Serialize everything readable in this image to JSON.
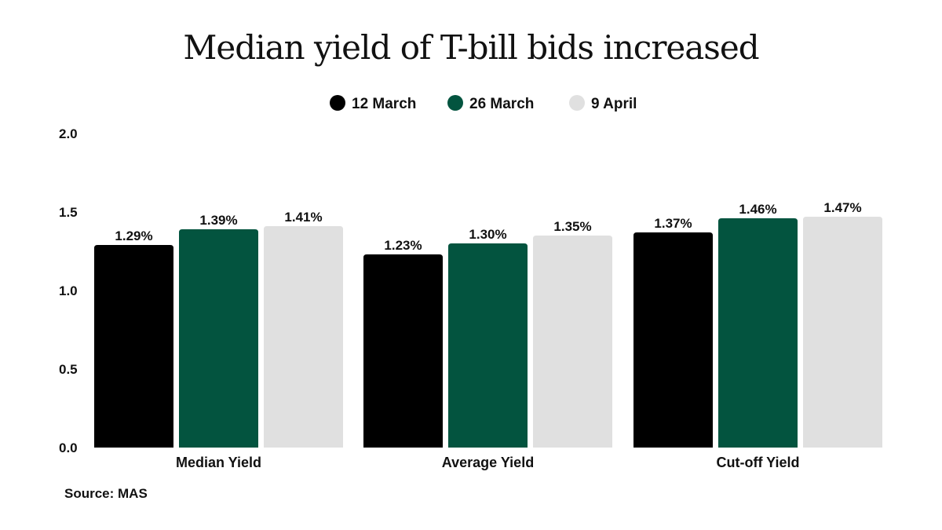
{
  "chart_data": {
    "type": "bar",
    "title": "Median yield of T-bill bids increased",
    "categories": [
      "Median Yield",
      "Average Yield",
      "Cut-off Yield"
    ],
    "series": [
      {
        "name": "12 March",
        "color": "#000000",
        "values": [
          1.29,
          1.23,
          1.37
        ],
        "labels": [
          "1.29%",
          "1.23%",
          "1.37%"
        ]
      },
      {
        "name": "26 March",
        "color": "#03543f",
        "values": [
          1.39,
          1.3,
          1.46
        ],
        "labels": [
          "1.39%",
          "1.30%",
          "1.46%"
        ]
      },
      {
        "name": "9 April",
        "color": "#e0e0e0",
        "values": [
          1.41,
          1.35,
          1.47
        ],
        "labels": [
          "1.41%",
          "1.35%",
          "1.47%"
        ]
      }
    ],
    "ylim": [
      0,
      2.0
    ],
    "yticks": [
      "0.0",
      "0.5",
      "1.0",
      "1.5",
      "2.0"
    ],
    "grid": false,
    "legend": "top-center",
    "xlabel": "",
    "ylabel": ""
  },
  "source": "Source: MAS"
}
